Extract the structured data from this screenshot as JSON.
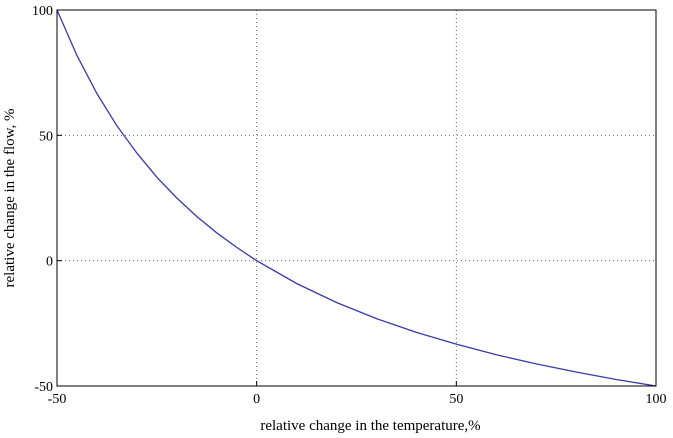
{
  "chart_data": {
    "type": "line",
    "xlabel": "relative change in the temperature,%",
    "ylabel": "relative change in the flow, %",
    "xlim": [
      -50,
      100
    ],
    "ylim": [
      -50,
      100
    ],
    "x_ticks": [
      -50,
      0,
      50,
      100
    ],
    "y_ticks": [
      -50,
      0,
      50,
      100
    ],
    "x_tick_labels": [
      "-50",
      "0",
      "50",
      "100"
    ],
    "y_tick_labels": [
      "-50",
      "0",
      "50",
      "100"
    ],
    "grid": true,
    "series": [
      {
        "color": "#3a3aa8",
        "x": [
          -50,
          -45,
          -40,
          -35,
          -30,
          -25,
          -20,
          -15,
          -10,
          -5,
          0,
          10,
          20,
          30,
          40,
          50,
          60,
          70,
          80,
          90,
          100
        ],
        "y": [
          100,
          81.8,
          66.7,
          53.8,
          42.9,
          33.3,
          25.0,
          17.6,
          11.1,
          5.3,
          0,
          -9.1,
          -16.7,
          -23.1,
          -28.6,
          -33.3,
          -37.5,
          -41.2,
          -44.4,
          -47.4,
          -50
        ]
      }
    ]
  }
}
